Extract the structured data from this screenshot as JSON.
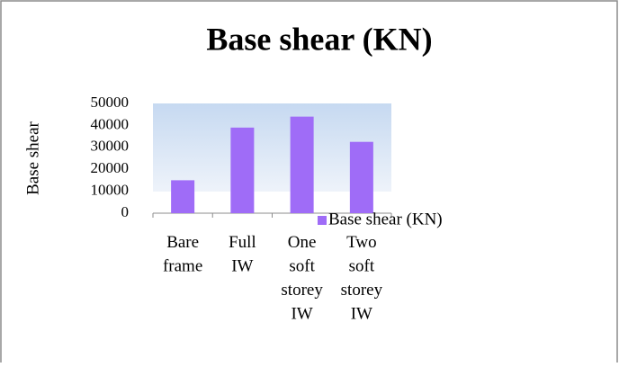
{
  "chart_data": {
    "type": "bar",
    "title": "Base shear (KN)",
    "y_label": "Base shear",
    "categories": [
      "Bare frame",
      "Full IW",
      "One soft storey IW",
      "Two soft storey IW"
    ],
    "series": [
      {
        "name": "Base shear (KN)",
        "color": "#9f6cf7",
        "values": [
          15000,
          39000,
          44000,
          32500
        ]
      }
    ],
    "ylim": [
      0,
      50000
    ],
    "yticks": [
      0,
      10000,
      20000,
      30000,
      40000,
      50000
    ],
    "legend": "right"
  }
}
